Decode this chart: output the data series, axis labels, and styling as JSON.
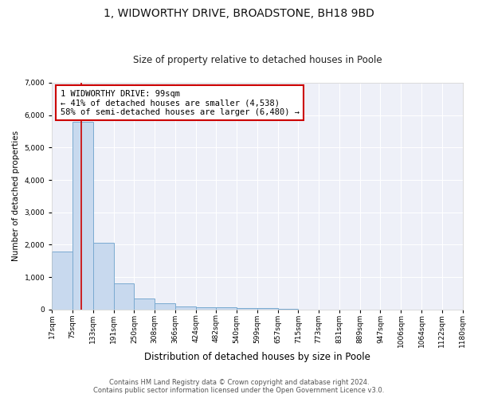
{
  "title": "1, WIDWORTHY DRIVE, BROADSTONE, BH18 9BD",
  "subtitle": "Size of property relative to detached houses in Poole",
  "xlabel": "Distribution of detached houses by size in Poole",
  "ylabel": "Number of detached properties",
  "bins": [
    "17sqm",
    "75sqm",
    "133sqm",
    "191sqm",
    "250sqm",
    "308sqm",
    "366sqm",
    "424sqm",
    "482sqm",
    "540sqm",
    "599sqm",
    "657sqm",
    "715sqm",
    "773sqm",
    "831sqm",
    "889sqm",
    "947sqm",
    "1006sqm",
    "1064sqm",
    "1122sqm",
    "1180sqm"
  ],
  "bar_heights": [
    1800,
    5800,
    2050,
    800,
    340,
    190,
    100,
    80,
    70,
    50,
    40,
    30,
    0,
    0,
    0,
    0,
    0,
    0,
    0,
    0
  ],
  "bar_color": "#c8d9ee",
  "bar_edge_color": "#7aaad0",
  "property_line_x": 99,
  "property_line_color": "#cc0000",
  "annotation_text": "1 WIDWORTHY DRIVE: 99sqm\n← 41% of detached houses are smaller (4,538)\n58% of semi-detached houses are larger (6,480) →",
  "annotation_box_color": "#cc0000",
  "ylim": [
    0,
    7000
  ],
  "yticks": [
    0,
    1000,
    2000,
    3000,
    4000,
    5000,
    6000,
    7000
  ],
  "bin_edges_sqm": [
    17,
    75,
    133,
    191,
    250,
    308,
    366,
    424,
    482,
    540,
    599,
    657,
    715,
    773,
    831,
    889,
    947,
    1006,
    1064,
    1122,
    1180
  ],
  "footer_line1": "Contains HM Land Registry data © Crown copyright and database right 2024.",
  "footer_line2": "Contains public sector information licensed under the Open Government Licence v3.0.",
  "background_color": "#ffffff",
  "plot_bg_color": "#eef0f8",
  "grid_color": "#ffffff",
  "title_fontsize": 10,
  "subtitle_fontsize": 8.5,
  "xlabel_fontsize": 8.5,
  "ylabel_fontsize": 7.5,
  "tick_fontsize": 6.5,
  "annotation_fontsize": 7.5,
  "footer_fontsize": 6
}
